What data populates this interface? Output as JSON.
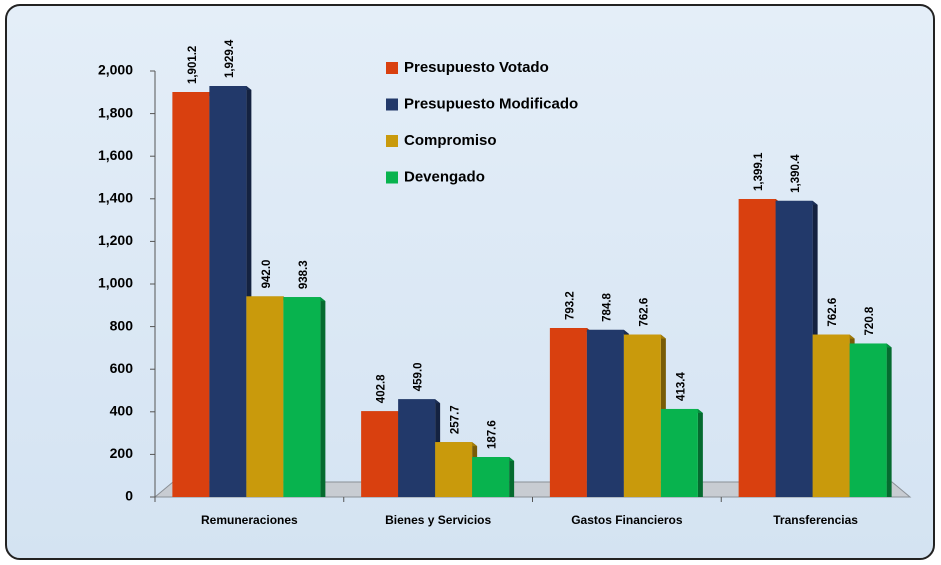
{
  "chart_data": {
    "type": "bar",
    "categories": [
      "Remuneraciones",
      "Bienes y Servicios",
      "Gastos Financieros",
      "Transferencias"
    ],
    "series": [
      {
        "name": "Presupuesto Votado",
        "color": "#d9400f",
        "values": [
          1901.2,
          402.8,
          793.2,
          1399.1
        ],
        "value_labels": [
          "1,901.2",
          "402.8",
          "793.2",
          "1,399.1"
        ]
      },
      {
        "name": "Presupuesto Modificado",
        "color": "#22396a",
        "values": [
          1929.4,
          459.0,
          784.8,
          1390.4
        ],
        "value_labels": [
          "1,929.4",
          "459.0",
          "784.8",
          "1,390.4"
        ]
      },
      {
        "name": "Compromiso",
        "color": "#c99a0c",
        "values": [
          942.0,
          257.7,
          762.6,
          762.6
        ],
        "value_labels": [
          "942.0",
          "257.7",
          "762.6",
          "762.6"
        ]
      },
      {
        "name": "Devengado",
        "color": "#08b34e",
        "values": [
          938.3,
          187.6,
          413.4,
          720.8
        ],
        "value_labels": [
          "938.3",
          "187.6",
          "413.4",
          "720.8"
        ]
      }
    ],
    "ylim": [
      0,
      2000
    ],
    "yticks": [
      0,
      200,
      400,
      600,
      800,
      {
        "value": 1000,
        "label": "1,000"
      },
      {
        "value": 1200,
        "label": "1,200"
      },
      {
        "value": 1400,
        "label": "1,400"
      },
      {
        "value": 1600,
        "label": "1,600"
      },
      {
        "value": 1800,
        "label": "1,800"
      },
      {
        "value": 2000,
        "label": "2,000"
      }
    ],
    "legend": "top-center"
  }
}
